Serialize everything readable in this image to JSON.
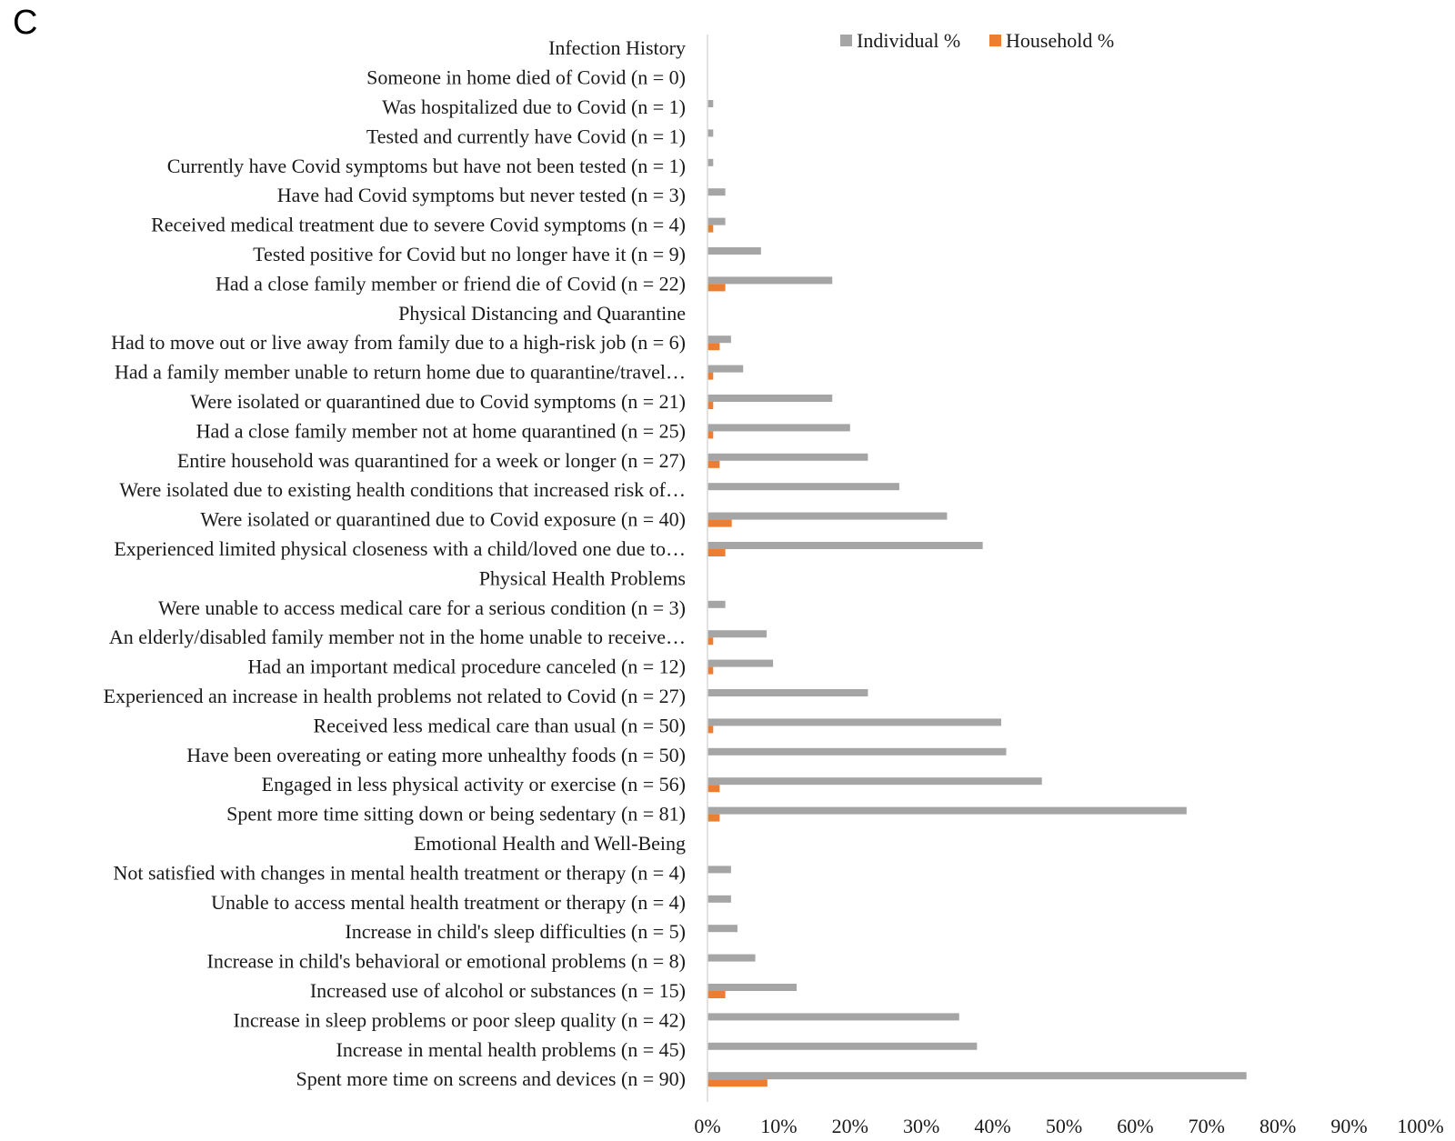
{
  "panel_label": "C",
  "chart_data": {
    "type": "bar",
    "orientation": "horizontal",
    "title": "",
    "xlabel": "",
    "ylabel": "",
    "xlim": [
      0,
      100
    ],
    "x_ticks": [
      "0%",
      "10%",
      "20%",
      "30%",
      "40%",
      "50%",
      "60%",
      "70%",
      "80%",
      "90%",
      "100%"
    ],
    "legend": {
      "placement": "top-right",
      "entries": [
        "Individual %",
        "Household %"
      ]
    },
    "colors": {
      "individual": "#a5a5a5",
      "household": "#ed7d31",
      "axis": "#d9d9d9"
    },
    "categories": [
      "Infection History",
      "Someone in home died of Covid (n = 0)",
      "Was hospitalized due to Covid (n = 1)",
      "Tested and currently have Covid (n = 1)",
      "Currently have Covid symptoms but have not been tested (n = 1)",
      "Have had Covid symptoms but never tested (n = 3)",
      "Received medical treatment due to severe Covid symptoms (n = 4)",
      "Tested positive for Covid but no longer have it (n = 9)",
      "Had a close family member or friend die of Covid (n = 22)",
      "Physical Distancing and Quarantine",
      "Had to move out or live away from family due to a high-risk job (n = 6)",
      "Had a family member unable to return home due to quarantine/travel…",
      "Were isolated or quarantined due to Covid symptoms (n = 21)",
      "Had a close family member not at home quarantined (n = 25)",
      "Entire household was quarantined for a week or longer (n = 27)",
      "Were isolated due to existing health conditions that increased risk of…",
      "Were isolated or quarantined due to Covid exposure (n = 40)",
      "Experienced limited physical closeness with a child/loved one due to…",
      "Physical Health Problems",
      "Were unable to access medical care for a serious condition (n = 3)",
      "An elderly/disabled family member not in the home unable to receive…",
      "Had an important medical procedure canceled (n = 12)",
      "Experienced an increase in health problems not related to Covid (n = 27)",
      "Received less medical care than usual (n = 50)",
      "Have been overeating or eating more unhealthy foods (n = 50)",
      "Engaged in less physical activity or exercise (n = 56)",
      "Spent more time sitting down or being sedentary (n = 81)",
      "Emotional Health and Well-Being",
      "Not satisfied with changes in mental health treatment or therapy (n = 4)",
      "Unable to access mental health treatment or therapy (n = 4)",
      "Increase in child's sleep difficulties (n = 5)",
      "Increase in child's behavioral or emotional problems (n = 8)",
      "Increased use of alcohol or substances (n = 15)",
      "Increase in sleep problems or poor sleep quality (n = 42)",
      "Increase in mental health problems (n = 45)",
      "Spent more time on screens and devices (n = 90)"
    ],
    "series": [
      {
        "name": "Individual %",
        "values": [
          0,
          0,
          0.8,
          0.8,
          0.8,
          2.5,
          2.5,
          7.5,
          17.5,
          0,
          3.3,
          5,
          17.5,
          20,
          22.5,
          26.9,
          33.6,
          38.6,
          0,
          2.5,
          8.3,
          9.2,
          22.5,
          41.2,
          41.9,
          46.9,
          67.2,
          0,
          3.3,
          3.3,
          4.2,
          6.7,
          12.5,
          35.3,
          37.8,
          75.6
        ]
      },
      {
        "name": "Household %",
        "values": [
          0,
          0,
          0,
          0,
          0,
          0,
          0.8,
          0,
          2.5,
          0,
          1.7,
          0.8,
          0.8,
          0.8,
          1.7,
          0,
          3.4,
          2.5,
          0,
          0,
          0.8,
          0.8,
          0,
          0.8,
          0,
          1.7,
          1.7,
          0,
          0,
          0,
          0,
          0,
          2.5,
          0,
          0,
          8.4
        ]
      }
    ]
  }
}
